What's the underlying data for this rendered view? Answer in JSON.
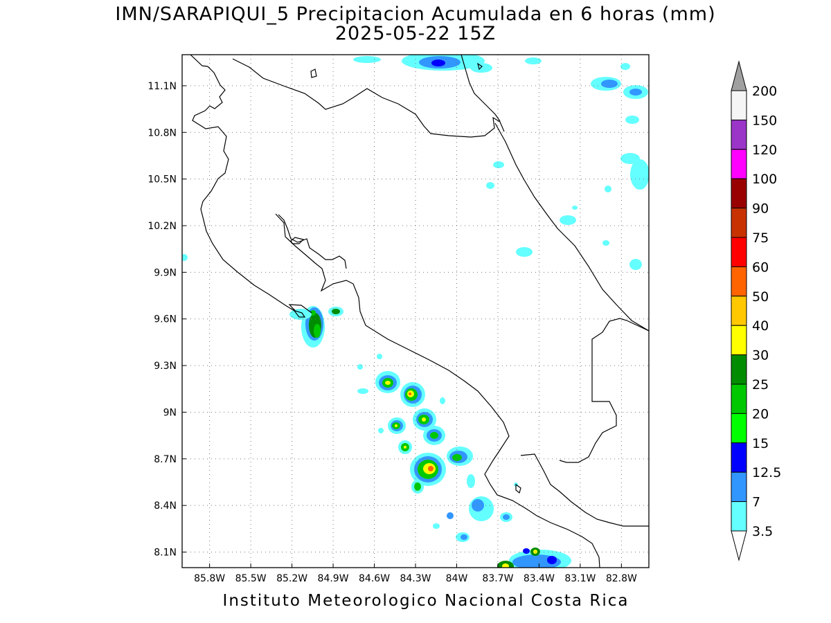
{
  "title_line1": "IMN/SARAPIQUI_5 Precipitacion Acumulada en 6 horas (mm)",
  "title_line2": "2025-05-22 15Z",
  "footer": "Instituto Meteorologico Nacional Costa Rica",
  "map": {
    "lon_range": [
      -86.0,
      -82.6
    ],
    "lat_range": [
      8.0,
      11.3
    ],
    "lon_ticks": [
      "85.8W",
      "85.5W",
      "85.2W",
      "84.9W",
      "84.6W",
      "84.3W",
      "84W",
      "83.7W",
      "83.4W",
      "83.1W",
      "82.8W"
    ],
    "lat_ticks": [
      "11.1N",
      "10.8N",
      "10.5N",
      "10.2N",
      "9.9N",
      "9.6N",
      "9.3N",
      "9N",
      "8.7N",
      "8.4N",
      "8.1N"
    ],
    "grid": "dotted"
  },
  "colorbar": {
    "levels": [
      "200",
      "150",
      "120",
      "100",
      "90",
      "75",
      "60",
      "50",
      "40",
      "30",
      "25",
      "20",
      "15",
      "12.5",
      "7",
      "3.5"
    ],
    "colors": [
      "#a0a0a0",
      "#f5f5f5",
      "#9a35c8",
      "#ff00ff",
      "#990000",
      "#c83200",
      "#ff0000",
      "#ff6400",
      "#ffc800",
      "#ffff00",
      "#008c00",
      "#00c800",
      "#00ff00",
      "#0000ff",
      "#3296ff",
      "#64ffff",
      "#ffffff"
    ]
  }
}
